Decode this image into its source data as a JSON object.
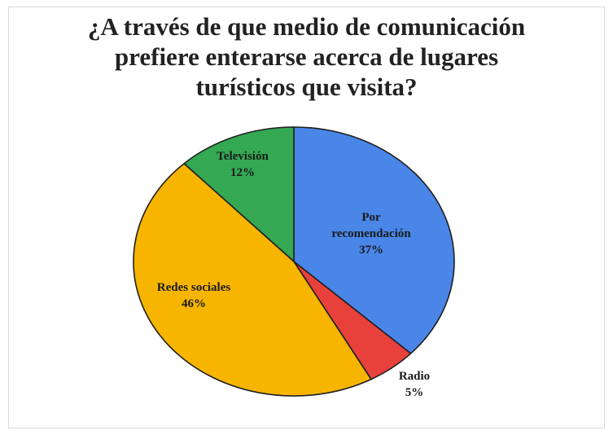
{
  "chart_data": {
    "type": "pie",
    "title_lines": [
      "¿A través de que medio de comunicación",
      "prefiere enterarse acerca de lugares",
      "turísticos que visita?"
    ],
    "slices": [
      {
        "label_lines": [
          "Por",
          "recomendación"
        ],
        "value": 37,
        "value_label": "37%",
        "color": "#4a86e8"
      },
      {
        "label_lines": [
          "Radio"
        ],
        "value": 5,
        "value_label": "5%",
        "color": "#e8413c"
      },
      {
        "label_lines": [
          "Redes sociales"
        ],
        "value": 46,
        "value_label": "46%",
        "color": "#f7b500"
      },
      {
        "label_lines": [
          "Televisión"
        ],
        "value": 12,
        "value_label": "12%",
        "color": "#34a853"
      }
    ],
    "start_angle": "12 o'clock",
    "direction": "clockwise",
    "legend": "none"
  }
}
